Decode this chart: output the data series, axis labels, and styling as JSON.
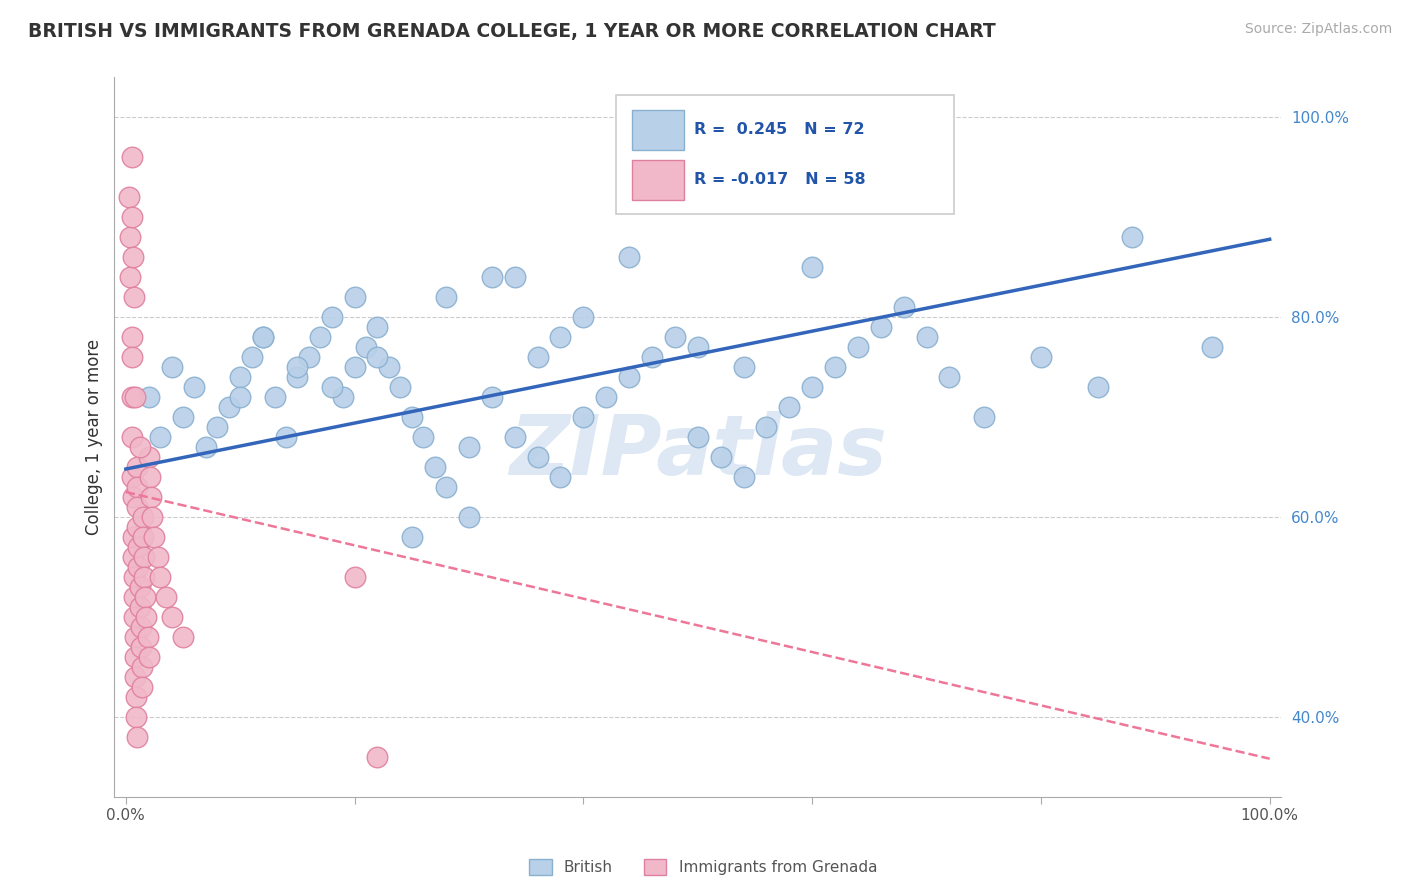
{
  "title": "BRITISH VS IMMIGRANTS FROM GRENADA COLLEGE, 1 YEAR OR MORE CORRELATION CHART",
  "source": "Source: ZipAtlas.com",
  "ylabel": "College, 1 year or more",
  "xlim": [
    -0.01,
    1.01
  ],
  "ylim": [
    0.32,
    1.04
  ],
  "x_ticks": [
    0.0,
    0.2,
    0.4,
    0.6,
    0.8,
    1.0
  ],
  "x_tick_labels": [
    "0.0%",
    "",
    "",
    "",
    "",
    "100.0%"
  ],
  "y_ticks_right": [
    0.4,
    0.6,
    0.8,
    1.0
  ],
  "y_tick_labels_right": [
    "40.0%",
    "60.0%",
    "80.0%",
    "100.0%"
  ],
  "british_R": 0.245,
  "british_N": 72,
  "grenada_R": -0.017,
  "grenada_N": 58,
  "blue_color": "#b8d0e8",
  "blue_edge": "#8ab0d0",
  "pink_color": "#f0b8c8",
  "pink_edge": "#e080a0",
  "blue_line_color": "#3366bb",
  "pink_line_color": "#ee7799",
  "watermark_color": "#dde8f4",
  "watermark": "ZIPatlas",
  "blue_trend_x0": 0.0,
  "blue_trend_y0": 0.648,
  "blue_trend_x1": 1.0,
  "blue_trend_y1": 0.878,
  "pink_trend_x0": 0.0,
  "pink_trend_y0": 0.625,
  "pink_trend_x1": 1.0,
  "pink_trend_y1": 0.358
}
